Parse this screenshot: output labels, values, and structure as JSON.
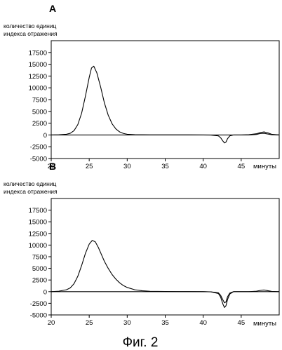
{
  "caption": "Фиг. 2",
  "chart_data": [
    {
      "type": "line",
      "panel_label": "A",
      "ylabel_lines": [
        "количество единиц",
        "индекса отражения"
      ],
      "xlabel": "минуты",
      "xlim": [
        20,
        50
      ],
      "ylim": [
        -5000,
        20000
      ],
      "xticks": [
        "20",
        "25",
        "30",
        "35",
        "40",
        "45"
      ],
      "yticks": [
        "-5000",
        "-2500",
        "0",
        "2500",
        "5000",
        "7500",
        "10000",
        "12500",
        "15000",
        "17500"
      ],
      "series": [
        {
          "x": [
            20,
            21,
            22,
            22.5,
            23,
            23.5,
            24,
            24.5,
            25,
            25.3,
            25.6,
            26,
            26.5,
            27,
            27.5,
            28,
            28.5,
            29,
            29.5,
            30,
            31,
            33,
            35,
            38,
            40,
            41,
            42,
            42.3,
            42.6,
            42.8,
            43,
            43.2,
            43.5,
            44,
            45,
            46,
            47,
            47.5,
            48,
            48.5,
            49,
            50
          ],
          "y": [
            0,
            30,
            150,
            350,
            900,
            2200,
            4600,
            8200,
            12200,
            14200,
            14600,
            13200,
            10200,
            6800,
            4200,
            2400,
            1300,
            650,
            320,
            150,
            60,
            20,
            10,
            10,
            0,
            -30,
            -200,
            -600,
            -1300,
            -1700,
            -1500,
            -800,
            -200,
            0,
            0,
            0,
            100,
            300,
            350,
            200,
            50,
            0
          ]
        },
        {
          "x": [
            20,
            30,
            40,
            44,
            45,
            46,
            47,
            47.5,
            48,
            48.5,
            49,
            50
          ],
          "y": [
            0,
            0,
            0,
            0,
            0,
            50,
            250,
            500,
            650,
            450,
            150,
            0
          ]
        }
      ]
    },
    {
      "type": "line",
      "panel_label": "B",
      "ylabel_lines": [
        "количество единиц",
        "индекса отражения"
      ],
      "xlabel": "минуты",
      "xlim": [
        20,
        50
      ],
      "ylim": [
        -5000,
        20000
      ],
      "xticks": [
        "20",
        "25",
        "30",
        "35",
        "40",
        "45"
      ],
      "yticks": [
        "-5000",
        "-2500",
        "0",
        "2500",
        "5000",
        "7500",
        "10000",
        "12500",
        "15000",
        "17500"
      ],
      "series": [
        {
          "x": [
            20,
            21,
            22,
            22.5,
            23,
            23.5,
            24,
            24.5,
            25,
            25.4,
            25.8,
            26.2,
            26.6,
            27,
            27.5,
            28,
            28.5,
            29,
            29.5,
            30,
            31,
            32,
            33,
            35,
            38,
            40,
            41,
            42,
            42.3,
            42.6,
            42.8,
            43,
            43.2,
            43.5,
            44,
            45,
            46,
            47,
            47.5,
            48,
            48.5,
            49,
            50
          ],
          "y": [
            0,
            100,
            400,
            800,
            1700,
            3300,
            5600,
            8200,
            10200,
            11000,
            10700,
            9500,
            8000,
            6500,
            5000,
            3700,
            2700,
            1900,
            1300,
            900,
            400,
            180,
            80,
            30,
            10,
            0,
            -50,
            -400,
            -1200,
            -2700,
            -3400,
            -3000,
            -1700,
            -500,
            0,
            0,
            0,
            100,
            250,
            350,
            200,
            50,
            0
          ]
        },
        {
          "x": [
            20,
            30,
            40,
            41,
            42,
            42.3,
            42.6,
            42.8,
            43,
            43.2,
            43.5,
            44,
            45,
            50
          ],
          "y": [
            0,
            0,
            0,
            -30,
            -250,
            -800,
            -1800,
            -2400,
            -2200,
            -1100,
            -300,
            0,
            0,
            0
          ]
        }
      ]
    }
  ]
}
